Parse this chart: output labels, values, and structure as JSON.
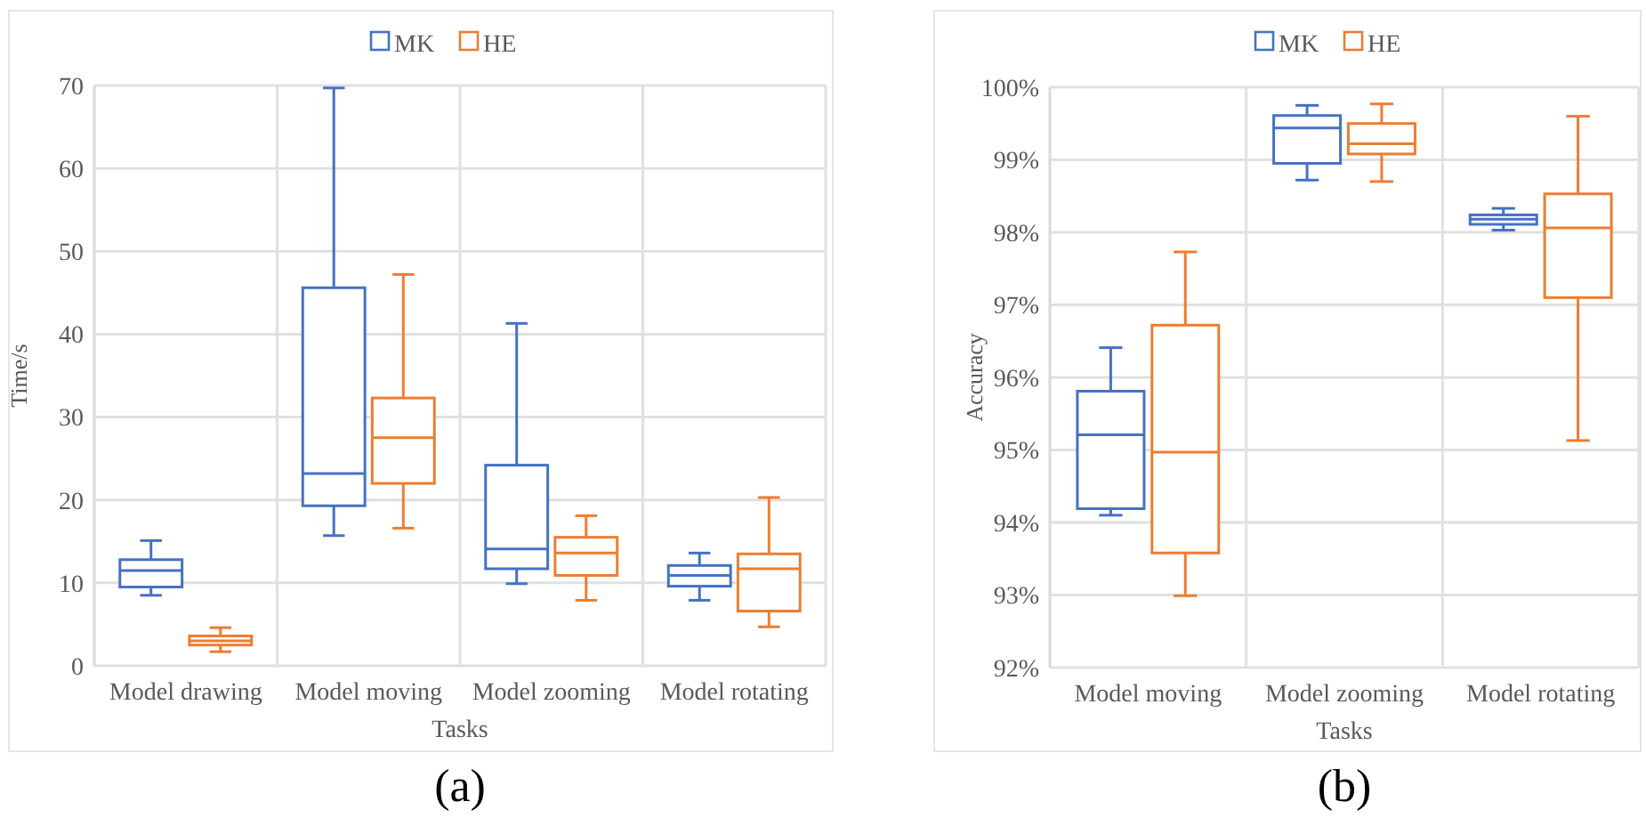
{
  "chart_data": [
    {
      "type": "box",
      "xlabel": "Tasks",
      "ylabel": "Time/s",
      "categories": [
        "Model drawing",
        "Model moving",
        "Model zooming",
        "Model rotating"
      ],
      "ylim": [
        0,
        70
      ],
      "yticks": [
        0,
        10,
        20,
        30,
        40,
        50,
        60,
        70
      ],
      "grid": "y",
      "legend": "top",
      "annotations": [
        "(a)"
      ],
      "series": [
        {
          "name": "MK",
          "color": "#4472c4",
          "boxes": [
            {
              "low": 8.5,
              "q1": 9.5,
              "median": 11.5,
              "q3": 12.8,
              "high": 15.1
            },
            {
              "low": 15.7,
              "q1": 19.3,
              "median": 23.2,
              "q3": 45.6,
              "high": 69.7
            },
            {
              "low": 9.9,
              "q1": 11.7,
              "median": 14.1,
              "q3": 24.2,
              "high": 41.3
            },
            {
              "low": 7.9,
              "q1": 9.6,
              "median": 10.9,
              "q3": 12.1,
              "high": 13.6
            }
          ]
        },
        {
          "name": "HE",
          "color": "#ed7d31",
          "boxes": [
            {
              "low": 1.7,
              "q1": 2.5,
              "median": 3.0,
              "q3": 3.6,
              "high": 4.6
            },
            {
              "low": 16.6,
              "q1": 22.0,
              "median": 27.5,
              "q3": 32.3,
              "high": 47.2
            },
            {
              "low": 7.9,
              "q1": 10.9,
              "median": 13.6,
              "q3": 15.5,
              "high": 18.1
            },
            {
              "low": 4.7,
              "q1": 6.6,
              "median": 11.7,
              "q3": 13.5,
              "high": 20.3
            }
          ]
        }
      ]
    },
    {
      "type": "box",
      "xlabel": "Tasks",
      "ylabel": "Accuracy",
      "categories": [
        "Model moving",
        "Model zooming",
        "Model rotating"
      ],
      "ylim": [
        92,
        100
      ],
      "yticks": [
        {
          "value": 92,
          "label": "92%"
        },
        {
          "value": 93,
          "label": "93%"
        },
        {
          "value": 94,
          "label": "94%"
        },
        {
          "value": 95,
          "label": "95%"
        },
        {
          "value": 96,
          "label": "96%"
        },
        {
          "value": 97,
          "label": "97%"
        },
        {
          "value": 98,
          "label": "98%"
        },
        {
          "value": 99,
          "label": "99%"
        },
        {
          "value": 100,
          "label": "100%"
        }
      ],
      "grid": "y",
      "legend": "top",
      "annotations": [
        "(b)"
      ],
      "series": [
        {
          "name": "MK",
          "color": "#4472c4",
          "boxes": [
            {
              "low": 94.1,
              "q1": 94.19,
              "median": 95.21,
              "q3": 95.81,
              "high": 96.41
            },
            {
              "low": 98.72,
              "q1": 98.95,
              "median": 99.44,
              "q3": 99.61,
              "high": 99.75
            },
            {
              "low": 98.03,
              "q1": 98.11,
              "median": 98.18,
              "q3": 98.24,
              "high": 98.33
            }
          ]
        },
        {
          "name": "HE",
          "color": "#ed7d31",
          "boxes": [
            {
              "low": 92.99,
              "q1": 93.58,
              "median": 94.97,
              "q3": 96.72,
              "high": 97.73
            },
            {
              "low": 98.7,
              "q1": 99.08,
              "median": 99.22,
              "q3": 99.5,
              "high": 99.77
            },
            {
              "low": 95.13,
              "q1": 97.1,
              "median": 98.06,
              "q3": 98.53,
              "high": 99.6
            }
          ]
        }
      ]
    }
  ]
}
